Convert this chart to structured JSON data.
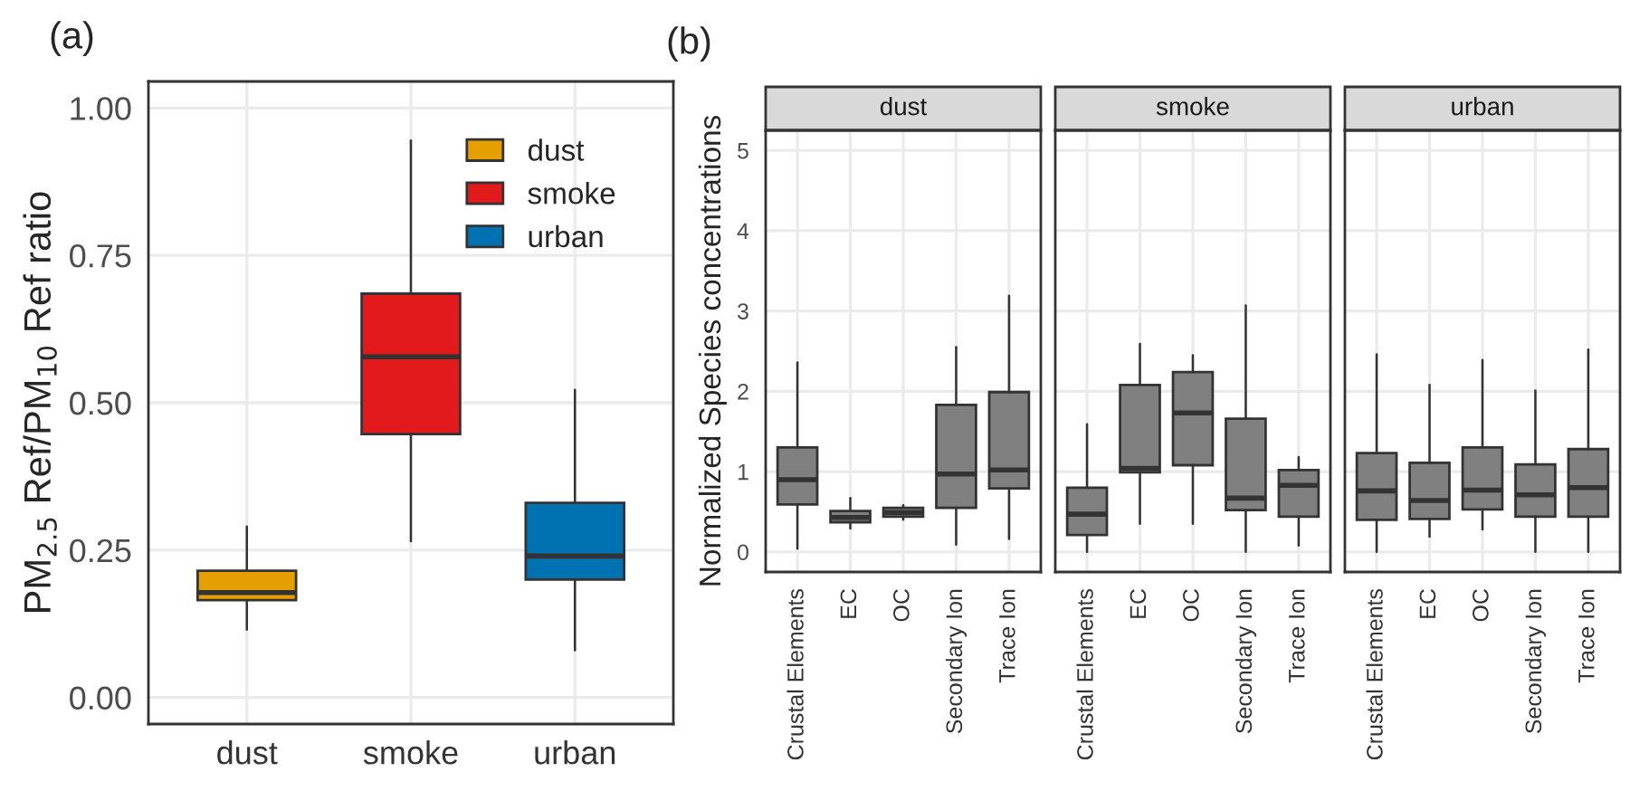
{
  "chart_data": [
    {
      "type": "box",
      "annotations": [
        "(a)"
      ],
      "ylabel": "PM$_{2.5}$ Ref/PM$_{10}$ Ref ratio",
      "categories": [
        "dust",
        "smoke",
        "urban"
      ],
      "legend": "top right",
      "grid": true,
      "ylim": [
        -0.045,
        1.045
      ],
      "yticks": [
        {
          "value": 0,
          "label": "0.00"
        },
        {
          "value": 0.25,
          "label": "0.25"
        },
        {
          "value": 0.5,
          "label": "0.50"
        },
        {
          "value": 0.75,
          "label": "0.75"
        },
        {
          "value": 1,
          "label": "1.00"
        }
      ],
      "series": [
        {
          "name": "dust",
          "color": "#e69f00",
          "boxes": [
            {
              "low": 0.115,
              "q1": 0.165,
              "median": 0.178,
              "q3": 0.215,
              "high": 0.29
            },
            null,
            null
          ]
        },
        {
          "name": "smoke",
          "color": "#e31a1c",
          "boxes": [
            null,
            {
              "low": 0.265,
              "q1": 0.447,
              "median": 0.578,
              "q3": 0.685,
              "high": 0.945
            },
            null
          ]
        },
        {
          "name": "urban",
          "color": "#0072b2",
          "boxes": [
            null,
            null,
            {
              "low": 0.08,
              "q1": 0.2,
              "median": 0.24,
              "q3": 0.33,
              "high": 0.522
            }
          ]
        }
      ]
    },
    {
      "type": "box",
      "title": "dust",
      "annotations": [
        "(b)"
      ],
      "ylabel": "Normalized Species concentrations",
      "categories": [
        "Crustal Elements",
        "EC",
        "OC",
        "Secondary Ion",
        "Trace Ion"
      ],
      "color": "#808080",
      "grid": true,
      "ylim": [
        -0.25,
        5.25
      ],
      "yticks": [
        0,
        1,
        2,
        3,
        4,
        5
      ],
      "boxes": [
        {
          "low": 0.04,
          "q1": 0.59,
          "median": 0.9,
          "q3": 1.3,
          "high": 2.36
        },
        {
          "low": 0.29,
          "q1": 0.37,
          "median": 0.43,
          "q3": 0.51,
          "high": 0.67
        },
        {
          "low": 0.4,
          "q1": 0.44,
          "median": 0.49,
          "q3": 0.55,
          "high": 0.58
        },
        {
          "low": 0.09,
          "q1": 0.55,
          "median": 0.97,
          "q3": 1.83,
          "high": 2.55
        },
        {
          "low": 0.16,
          "q1": 0.79,
          "median": 1.02,
          "q3": 1.99,
          "high": 3.19
        }
      ]
    },
    {
      "type": "box",
      "title": "smoke",
      "categories": [
        "Crustal Elements",
        "EC",
        "OC",
        "Secondary Ion",
        "Trace Ion"
      ],
      "color": "#808080",
      "grid": true,
      "tick_labels": "x",
      "ylim": [
        -0.25,
        5.25
      ],
      "yticks": [
        0,
        1,
        2,
        3,
        4,
        5
      ],
      "boxes": [
        {
          "low": 0,
          "q1": 0.21,
          "median": 0.47,
          "q3": 0.8,
          "high": 1.59
        },
        {
          "low": 0.35,
          "q1": 0.99,
          "median": 1.04,
          "q3": 2.08,
          "high": 2.59
        },
        {
          "low": 0.35,
          "q1": 1.08,
          "median": 1.73,
          "q3": 2.24,
          "high": 2.45
        },
        {
          "low": 0,
          "q1": 0.52,
          "median": 0.67,
          "q3": 1.66,
          "high": 3.07
        },
        {
          "low": 0.08,
          "q1": 0.44,
          "median": 0.83,
          "q3": 1.02,
          "high": 1.18
        }
      ]
    },
    {
      "type": "box",
      "title": "urban",
      "categories": [
        "Crustal Elements",
        "EC",
        "OC",
        "Secondary Ion",
        "Trace Ion"
      ],
      "color": "#808080",
      "grid": true,
      "tick_labels": "x",
      "ylim": [
        -0.25,
        5.25
      ],
      "yticks": [
        0,
        1,
        2,
        3,
        4,
        5
      ],
      "boxes": [
        {
          "low": 0,
          "q1": 0.4,
          "median": 0.76,
          "q3": 1.23,
          "high": 2.46
        },
        {
          "low": 0.19,
          "q1": 0.41,
          "median": 0.64,
          "q3": 1.11,
          "high": 2.08
        },
        {
          "low": 0.28,
          "q1": 0.53,
          "median": 0.77,
          "q3": 1.3,
          "high": 2.39
        },
        {
          "low": 0,
          "q1": 0.44,
          "median": 0.71,
          "q3": 1.09,
          "high": 2.01
        },
        {
          "low": 0,
          "q1": 0.44,
          "median": 0.8,
          "q3": 1.28,
          "high": 2.52
        }
      ]
    }
  ]
}
